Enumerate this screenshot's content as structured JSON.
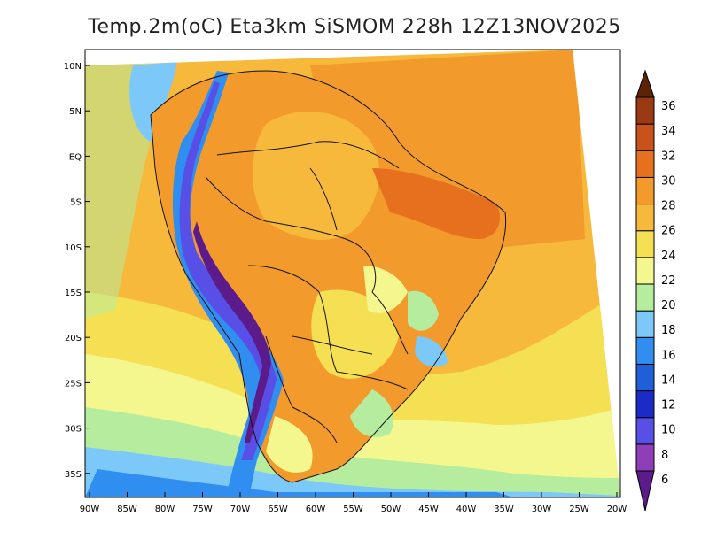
{
  "title": "Temp.2m(oC) Eta3km SiSMOM 228h 12Z13NOV2025",
  "map": {
    "lat_ticks": [
      "10N",
      "5N",
      "EQ",
      "5S",
      "10S",
      "15S",
      "20S",
      "25S",
      "30S",
      "35S"
    ],
    "lon_ticks": [
      "90W",
      "85W",
      "80W",
      "75W",
      "70W",
      "65W",
      "60W",
      "55W",
      "50W",
      "45W",
      "40W",
      "35W",
      "30W",
      "25W",
      "20W"
    ]
  },
  "colorbar": {
    "labels": [
      "6",
      "8",
      "10",
      "12",
      "14",
      "16",
      "18",
      "20",
      "22",
      "24",
      "26",
      "28",
      "30",
      "32",
      "34",
      "36"
    ],
    "colors": [
      "#5b1b8a",
      "#8e3fb8",
      "#5850e6",
      "#1a2bc8",
      "#1f5fd8",
      "#2f8ef0",
      "#7cc8f8",
      "#b6ec9e",
      "#f4f78e",
      "#f5df52",
      "#f6b93b",
      "#f39a2d",
      "#e6701e",
      "#c85219",
      "#9a3a12",
      "#5c2308"
    ]
  }
}
